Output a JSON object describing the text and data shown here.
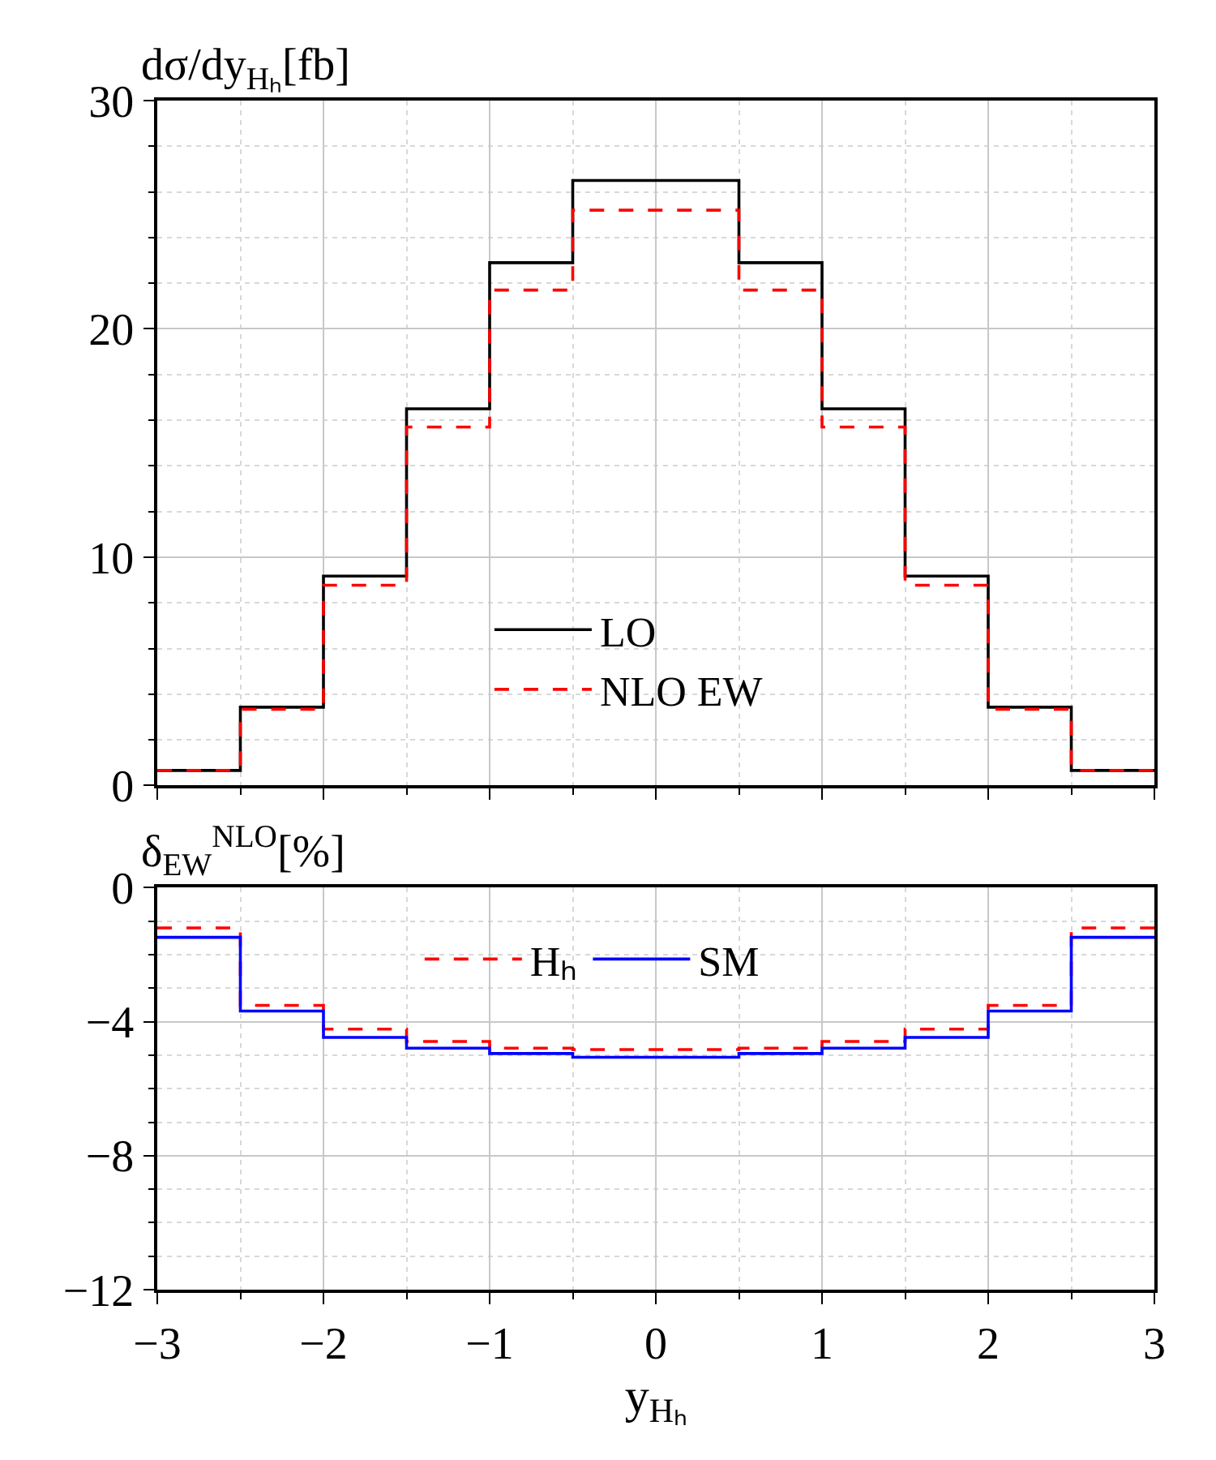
{
  "chart_data": [
    {
      "type": "histogram",
      "ylabel": "dσ/dy$_{Hₕ}$[fb]",
      "bins": [
        -3,
        -2.5,
        -2,
        -1.5,
        -1,
        -0.5,
        0,
        0.5,
        1,
        1.5,
        2,
        2.5,
        3
      ],
      "series": [
        {
          "name": "LO",
          "color": "#000000",
          "line_style": "solid",
          "values": [
            0.66,
            3.43,
            9.17,
            16.5,
            22.9,
            26.5,
            26.5,
            22.9,
            16.5,
            9.17,
            3.43,
            0.66
          ]
        },
        {
          "name": "NLO EW",
          "color": "#ff0000",
          "line_style": "dashed",
          "values": [
            0.66,
            3.34,
            8.77,
            15.7,
            21.7,
            25.2,
            25.2,
            21.7,
            15.7,
            8.77,
            3.34,
            0.66
          ]
        }
      ],
      "xlim": [
        -3,
        3
      ],
      "xticks": [
        -3,
        -2,
        -1,
        0,
        1,
        2,
        3
      ],
      "ylim": [
        0,
        30
      ],
      "yticks": [
        0,
        10,
        20,
        30
      ],
      "tick_labels": "y",
      "grid": true,
      "legend": "bottom"
    },
    {
      "type": "histogram",
      "ylabel": "δ$_{EW}$$^{NLO}$[%]",
      "xlabel": "y$_{Hₕ}$",
      "bins": [
        -3,
        -2.5,
        -2,
        -1.5,
        -1,
        -0.5,
        0,
        0.5,
        1,
        1.5,
        2,
        2.5,
        3
      ],
      "series": [
        {
          "name": "Hₕ",
          "color": "#ff0000",
          "line_style": "dashed",
          "values": [
            -1.2,
            -3.51,
            -4.22,
            -4.59,
            -4.79,
            -4.83,
            -4.83,
            -4.79,
            -4.59,
            -4.22,
            -3.51,
            -1.2
          ]
        },
        {
          "name": "SM",
          "color": "#0000ff",
          "line_style": "solid",
          "values": [
            -1.48,
            -3.68,
            -4.47,
            -4.79,
            -4.95,
            -5.06,
            -5.06,
            -4.95,
            -4.79,
            -4.47,
            -3.68,
            -1.48
          ]
        }
      ],
      "xlim": [
        -3,
        3
      ],
      "xticks": [
        -3,
        -2,
        -1,
        0,
        1,
        2,
        3
      ],
      "ylim": [
        -12,
        0
      ],
      "yticks": [
        -12,
        -8,
        -4,
        0
      ],
      "grid": true,
      "legend": "top"
    }
  ]
}
